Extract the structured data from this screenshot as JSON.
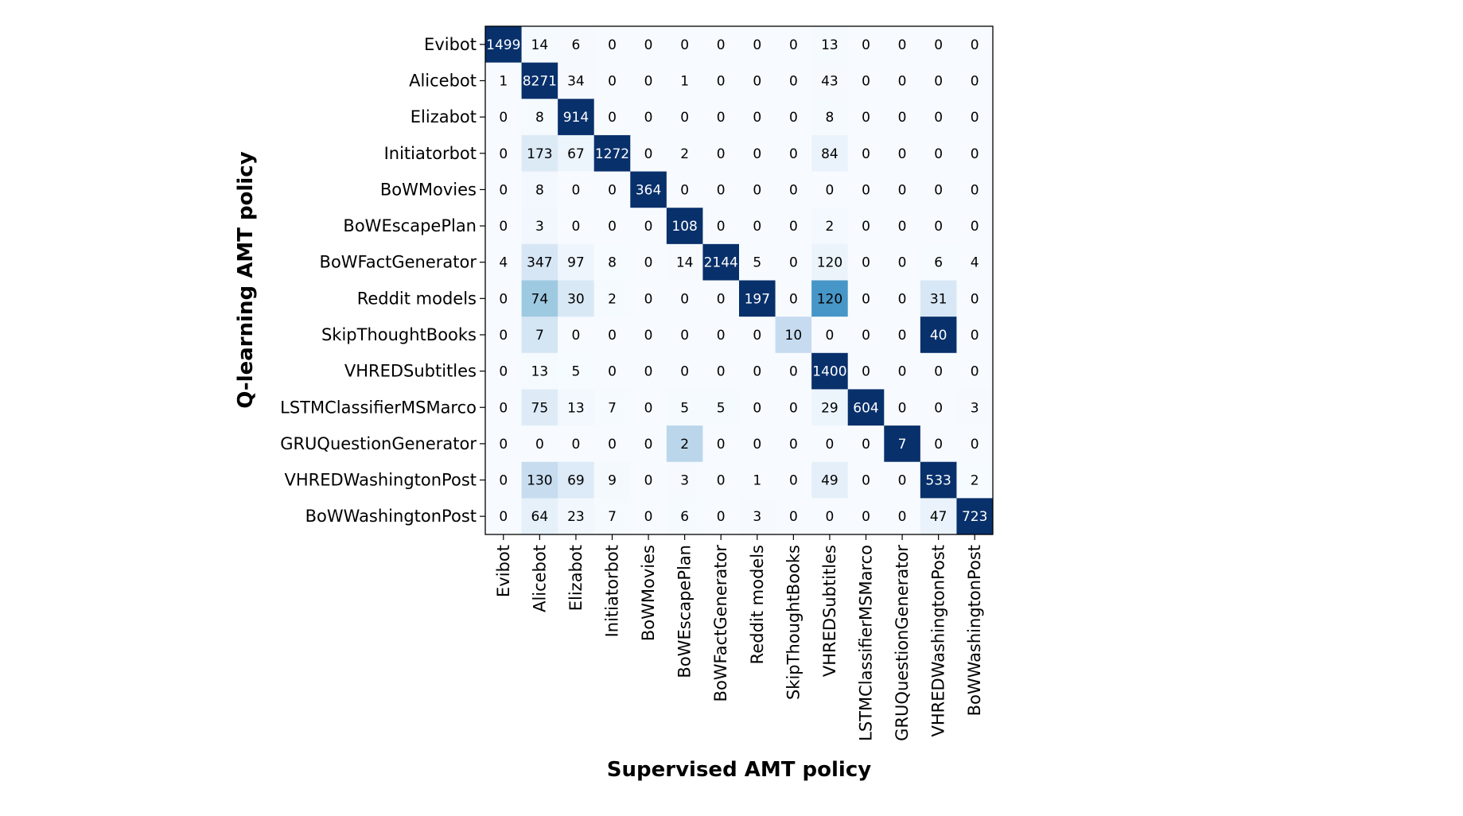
{
  "chart_data": {
    "type": "heatmap",
    "title": "",
    "xlabel": "Supervised AMT policy",
    "ylabel": "Q-learning AMT policy",
    "colormap": "Blues",
    "color_scale": "row-normalized",
    "x_categories": [
      "Evibot",
      "Alicebot",
      "Elizabot",
      "Initiatorbot",
      "BoWMovies",
      "BoWEscapePlan",
      "BoWFactGenerator",
      "Reddit models",
      "SkipThoughtBooks",
      "VHREDSubtitles",
      "LSTMClassifierMSMarco",
      "GRUQuestionGenerator",
      "VHREDWashingtonPost",
      "BoWWashingtonPost"
    ],
    "y_categories": [
      "Evibot",
      "Alicebot",
      "Elizabot",
      "Initiatorbot",
      "BoWMovies",
      "BoWEscapePlan",
      "BoWFactGenerator",
      "Reddit models",
      "SkipThoughtBooks",
      "VHREDSubtitles",
      "LSTMClassifierMSMarco",
      "GRUQuestionGenerator",
      "VHREDWashingtonPost",
      "BoWWashingtonPost"
    ],
    "values": [
      [
        1499,
        14,
        6,
        0,
        0,
        0,
        0,
        0,
        0,
        13,
        0,
        0,
        0,
        0
      ],
      [
        1,
        8271,
        34,
        0,
        0,
        1,
        0,
        0,
        0,
        43,
        0,
        0,
        0,
        0
      ],
      [
        0,
        8,
        914,
        0,
        0,
        0,
        0,
        0,
        0,
        8,
        0,
        0,
        0,
        0
      ],
      [
        0,
        173,
        67,
        1272,
        0,
        2,
        0,
        0,
        0,
        84,
        0,
        0,
        0,
        0
      ],
      [
        0,
        8,
        0,
        0,
        364,
        0,
        0,
        0,
        0,
        0,
        0,
        0,
        0,
        0
      ],
      [
        0,
        3,
        0,
        0,
        0,
        108,
        0,
        0,
        0,
        2,
        0,
        0,
        0,
        0
      ],
      [
        4,
        347,
        97,
        8,
        0,
        14,
        2144,
        5,
        0,
        120,
        0,
        0,
        6,
        4
      ],
      [
        0,
        74,
        30,
        2,
        0,
        0,
        0,
        197,
        0,
        120,
        0,
        0,
        31,
        0
      ],
      [
        0,
        7,
        0,
        0,
        0,
        0,
        0,
        0,
        10,
        0,
        0,
        0,
        40,
        0
      ],
      [
        0,
        13,
        5,
        0,
        0,
        0,
        0,
        0,
        0,
        1400,
        0,
        0,
        0,
        0
      ],
      [
        0,
        75,
        13,
        7,
        0,
        5,
        5,
        0,
        0,
        29,
        604,
        0,
        0,
        3
      ],
      [
        0,
        0,
        0,
        0,
        0,
        2,
        0,
        0,
        0,
        0,
        0,
        7,
        0,
        0
      ],
      [
        0,
        130,
        69,
        9,
        0,
        3,
        0,
        1,
        0,
        49,
        0,
        0,
        533,
        2
      ],
      [
        0,
        64,
        23,
        7,
        0,
        6,
        0,
        3,
        0,
        0,
        0,
        0,
        47,
        723
      ]
    ]
  }
}
